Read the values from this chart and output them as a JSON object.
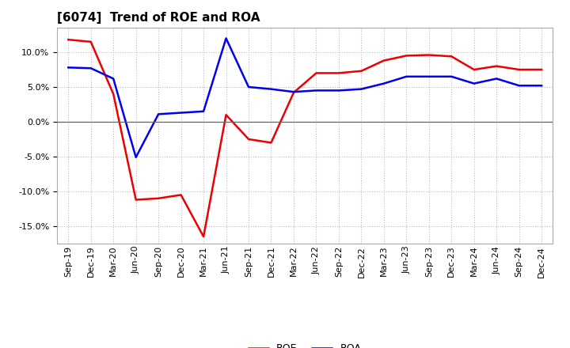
{
  "title": "[6074]  Trend of ROE and ROA",
  "x_labels": [
    "Sep-19",
    "Dec-19",
    "Mar-20",
    "Jun-20",
    "Sep-20",
    "Dec-20",
    "Mar-21",
    "Jun-21",
    "Sep-21",
    "Dec-21",
    "Mar-22",
    "Jun-22",
    "Sep-22",
    "Dec-22",
    "Mar-23",
    "Jun-23",
    "Sep-23",
    "Dec-23",
    "Mar-24",
    "Jun-24",
    "Sep-24",
    "Dec-24"
  ],
  "roe": [
    11.8,
    11.5,
    4.0,
    -11.2,
    -11.0,
    -10.5,
    -16.5,
    1.0,
    -2.5,
    -3.0,
    4.2,
    7.0,
    7.0,
    7.3,
    8.8,
    9.5,
    9.6,
    9.4,
    7.5,
    8.0,
    7.5,
    7.5
  ],
  "roa": [
    7.8,
    7.7,
    6.2,
    -5.1,
    1.1,
    1.3,
    1.5,
    12.0,
    5.0,
    4.7,
    4.3,
    4.5,
    4.5,
    4.7,
    5.5,
    6.5,
    6.5,
    6.5,
    5.5,
    6.2,
    5.2,
    5.2
  ],
  "roe_color": "#ee0000",
  "roa_color": "#0000ee",
  "bg_color": "#ffffff",
  "plot_bg_color": "#ffffff",
  "grid_color": "#bbbbbb",
  "ylim": [
    -17.5,
    13.5
  ],
  "yticks": [
    -15.0,
    -10.0,
    -5.0,
    0.0,
    5.0,
    10.0
  ],
  "legend_roe": "ROE",
  "legend_roa": "ROA",
  "title_fontsize": 11,
  "tick_fontsize": 8,
  "legend_fontsize": 9
}
